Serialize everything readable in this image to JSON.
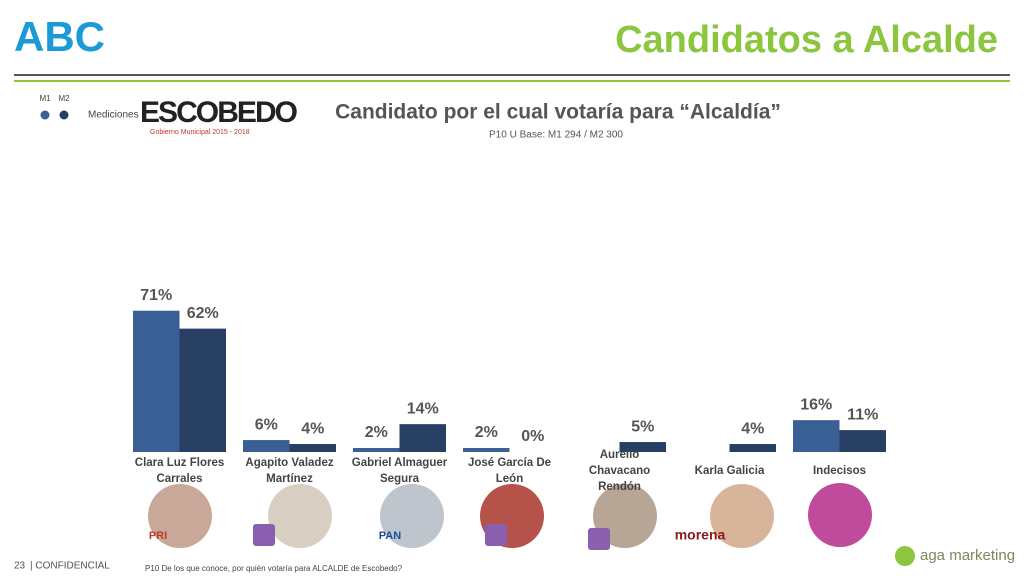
{
  "header": {
    "logo": "ABC",
    "title": "Candidatos a Alcalde"
  },
  "legend_title": "Mediciones",
  "brand": {
    "name": "ESCOBEDO",
    "tagline": "Gobierno Municipal 2015 - 2018"
  },
  "chart_data": {
    "type": "bar",
    "title": "Candidato por el cual votaría para “Alcaldía”",
    "subtitle": "P10 U Base: M1 294 / M2 300",
    "categories": [
      "Clara Luz Flores Carrales",
      "Agapito Valadez Martínez",
      "Gabriel Almaguer Segura",
      "José García De León",
      "Aurelio Chavacano Rendón",
      "Karla Galicia",
      "Indecisos"
    ],
    "series": [
      {
        "name": "M1",
        "color": "#3a5f95",
        "values": [
          71,
          6,
          2,
          2,
          null,
          null,
          16
        ],
        "value_labels": [
          "71%",
          "6%",
          "2%",
          "2%",
          null,
          null,
          "16%"
        ]
      },
      {
        "name": "M2",
        "color": "#263f63",
        "values": [
          62,
          4,
          14,
          0,
          5,
          4,
          11
        ],
        "value_labels": [
          "62%",
          "4%",
          "14%",
          "0%",
          "5%",
          "4%",
          "11%"
        ]
      }
    ]
  },
  "party_logos": [
    "PRI",
    "PAN",
    "morena"
  ],
  "footer": {
    "page": "23",
    "confidential": "| CONFIDENCIAL",
    "note": "P10 De los que conoce, por quién votaría para ALCALDE de Escobedo?",
    "company": "aga marketing"
  }
}
